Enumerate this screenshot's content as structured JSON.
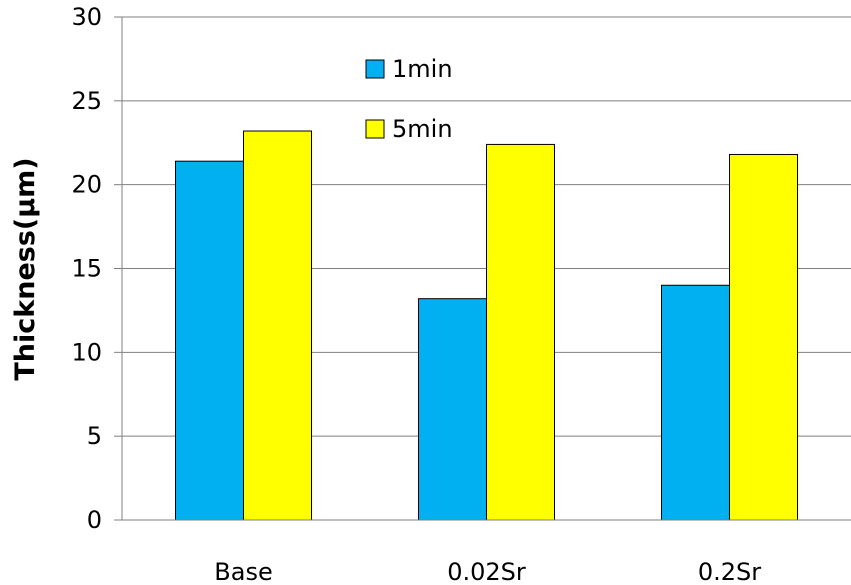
{
  "chart_data": {
    "type": "bar",
    "title": "",
    "xlabel": "",
    "ylabel": "Thickness(μm)",
    "ylim": [
      0,
      30
    ],
    "yticks": [
      0,
      5,
      10,
      15,
      20,
      25,
      30
    ],
    "grid": true,
    "legend_placement": "top-center",
    "categories": [
      "Base",
      "0.02Sr",
      "0.2Sr"
    ],
    "series": [
      {
        "name": "1min",
        "values": [
          21.4,
          13.2,
          14.0
        ],
        "color": "#00b0f0"
      },
      {
        "name": "5min",
        "values": [
          23.2,
          22.4,
          21.8
        ],
        "color": "#ffff00"
      }
    ]
  }
}
